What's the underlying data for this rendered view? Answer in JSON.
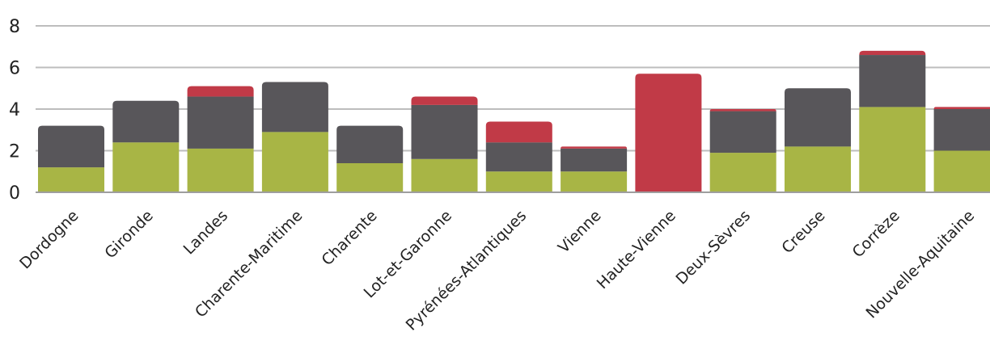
{
  "chart_data": {
    "type": "bar",
    "stacked": true,
    "title": "",
    "xlabel": "",
    "ylabel": "",
    "ylim": [
      0,
      8
    ],
    "yticks": [
      0,
      2,
      4,
      6,
      8
    ],
    "grid": true,
    "categories": [
      "Dordogne",
      "Gironde",
      "Landes",
      "Charente-Maritime",
      "Charente",
      "Lot-et-Garonne",
      "Pyrénées-Atlantiques",
      "Vienne",
      "Haute-Vienne",
      "Deux-Sèvres",
      "Creuse",
      "Corrèze",
      "Nouvelle-Aquitaine"
    ],
    "series": [
      {
        "color": "#a8b545",
        "values": [
          1.2,
          2.4,
          2.1,
          2.9,
          1.4,
          1.6,
          1.0,
          1.0,
          0.0,
          1.9,
          2.2,
          4.1,
          2.0
        ]
      },
      {
        "color": "#58565a",
        "values": [
          2.0,
          2.0,
          2.5,
          2.4,
          1.8,
          2.6,
          1.4,
          1.1,
          0.0,
          2.0,
          2.8,
          2.5,
          2.0
        ]
      },
      {
        "color": "#c13a47",
        "values": [
          0.0,
          0.0,
          0.5,
          0.0,
          0.0,
          0.4,
          1.0,
          0.1,
          5.7,
          0.1,
          0.0,
          0.2,
          0.1
        ]
      }
    ]
  }
}
